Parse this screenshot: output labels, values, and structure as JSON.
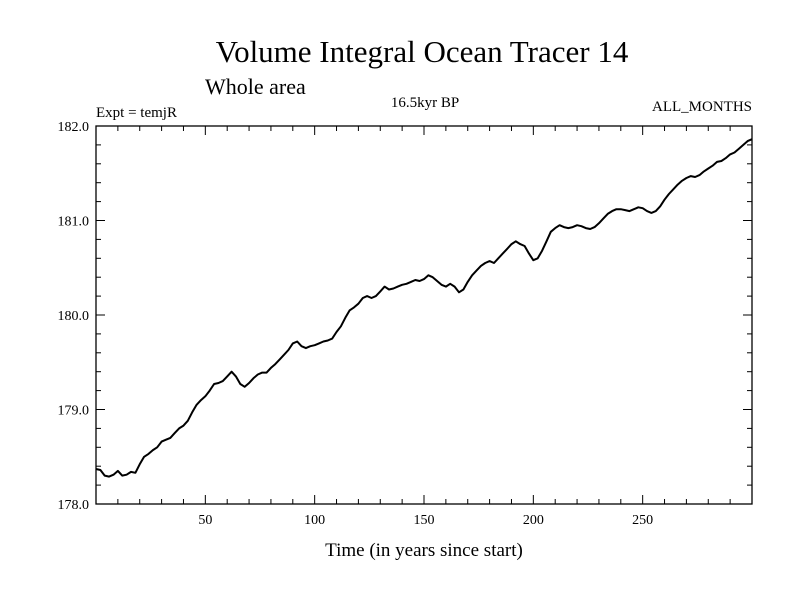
{
  "chart_data": {
    "type": "line",
    "title": "Volume Integral Ocean Tracer 14",
    "subtitle": "Whole area",
    "header_left": "Expt = temjR",
    "header_center": "16.5kyr BP",
    "header_right": "ALL_MONTHS",
    "xlabel": "Time (in years since start)",
    "ylabel": "",
    "xlim": [
      0,
      300
    ],
    "ylim": [
      178.0,
      182.0
    ],
    "x_ticks": [
      50,
      100,
      150,
      200,
      250
    ],
    "y_ticks": [
      178.0,
      179.0,
      180.0,
      181.0,
      182.0
    ],
    "y_tick_labels": [
      "178.0",
      "179.0",
      "180.0",
      "181.0",
      "182.0"
    ],
    "grid": false,
    "line_color": "#000000",
    "series": [
      {
        "name": "",
        "x": [
          0,
          2,
          4,
          6,
          8,
          10,
          12,
          14,
          16,
          18,
          20,
          22,
          24,
          26,
          28,
          30,
          32,
          34,
          36,
          38,
          40,
          42,
          44,
          46,
          48,
          50,
          52,
          54,
          56,
          58,
          60,
          62,
          64,
          66,
          68,
          70,
          72,
          74,
          76,
          78,
          80,
          82,
          84,
          86,
          88,
          90,
          92,
          94,
          96,
          98,
          100,
          102,
          104,
          106,
          108,
          110,
          112,
          114,
          116,
          118,
          120,
          122,
          124,
          126,
          128,
          130,
          132,
          134,
          136,
          138,
          140,
          142,
          144,
          146,
          148,
          150,
          152,
          154,
          156,
          158,
          160,
          162,
          164,
          166,
          168,
          170,
          172,
          174,
          176,
          178,
          180,
          182,
          184,
          186,
          188,
          190,
          192,
          194,
          196,
          198,
          200,
          202,
          204,
          206,
          208,
          210,
          212,
          214,
          216,
          218,
          220,
          222,
          224,
          226,
          228,
          230,
          232,
          234,
          236,
          238,
          240,
          242,
          244,
          246,
          248,
          250,
          252,
          254,
          256,
          258,
          260,
          262,
          264,
          266,
          268,
          270,
          272,
          274,
          276,
          278,
          280,
          282,
          284,
          286,
          288,
          290,
          292,
          294,
          296,
          298,
          300
        ],
        "y": [
          178.37,
          178.36,
          178.3,
          178.29,
          178.31,
          178.35,
          178.3,
          178.31,
          178.34,
          178.33,
          178.42,
          178.5,
          178.53,
          178.57,
          178.6,
          178.66,
          178.68,
          178.7,
          178.75,
          178.8,
          178.83,
          178.88,
          178.97,
          179.05,
          179.1,
          179.14,
          179.2,
          179.27,
          179.28,
          179.3,
          179.35,
          179.4,
          179.35,
          179.27,
          179.24,
          179.28,
          179.33,
          179.37,
          179.39,
          179.39,
          179.44,
          179.48,
          179.53,
          179.58,
          179.63,
          179.7,
          179.72,
          179.67,
          179.65,
          179.67,
          179.68,
          179.7,
          179.72,
          179.73,
          179.75,
          179.82,
          179.88,
          179.97,
          180.05,
          180.08,
          180.12,
          180.18,
          180.2,
          180.18,
          180.2,
          180.25,
          180.3,
          180.27,
          180.28,
          180.3,
          180.32,
          180.33,
          180.35,
          180.37,
          180.36,
          180.38,
          180.42,
          180.4,
          180.36,
          180.32,
          180.3,
          180.33,
          180.3,
          180.24,
          180.27,
          180.35,
          180.42,
          180.47,
          180.52,
          180.55,
          180.57,
          180.55,
          180.6,
          180.65,
          180.7,
          180.75,
          180.78,
          180.75,
          180.73,
          180.65,
          180.58,
          180.6,
          180.68,
          180.78,
          180.88,
          180.92,
          180.95,
          180.93,
          180.92,
          180.93,
          180.95,
          180.94,
          180.92,
          180.91,
          180.93,
          180.97,
          181.02,
          181.07,
          181.1,
          181.12,
          181.12,
          181.11,
          181.1,
          181.12,
          181.14,
          181.13,
          181.1,
          181.08,
          181.1,
          181.15,
          181.22,
          181.28,
          181.33,
          181.38,
          181.42,
          181.45,
          181.47,
          181.46,
          181.48,
          181.52,
          181.55,
          181.58,
          181.62,
          181.63,
          181.66,
          181.7,
          181.72,
          181.76,
          181.8,
          181.84,
          181.86
        ]
      }
    ]
  }
}
